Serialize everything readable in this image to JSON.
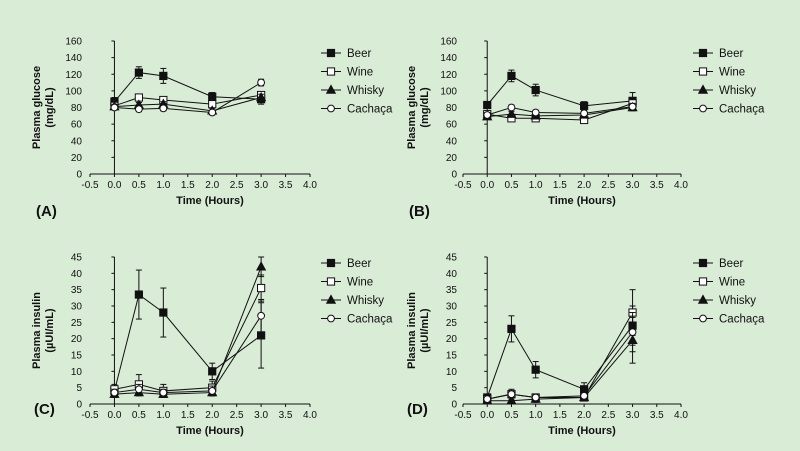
{
  "colors": {
    "background": "#d8ecd6",
    "ink": "#111111",
    "hollow_fill": "#ffffff"
  },
  "legend_labels": [
    "Beer",
    "Wine",
    "Whisky",
    "Cachaça"
  ],
  "series_markers": {
    "Beer": "filled-square",
    "Wine": "open-square",
    "Whisky": "filled-triangle",
    "Cachaça": "open-circle"
  },
  "chart_data": [
    {
      "type": "line",
      "panel_label": "(A)",
      "ylabel": "Plasma glucose (mg/dL)",
      "xlabel": "Time (Hours)",
      "x": [
        0,
        0.5,
        1,
        2,
        3
      ],
      "xlim": [
        -0.5,
        4.0
      ],
      "xticks": [
        "-0.5",
        "0.0",
        "0.5",
        "1.0",
        "1.5",
        "2.0",
        "2.5",
        "3.0",
        "3.5",
        "4.0"
      ],
      "ylim": [
        0,
        160
      ],
      "yticks": [
        "0",
        "20",
        "40",
        "60",
        "80",
        "100",
        "120",
        "140",
        "160"
      ],
      "legend_position": "right",
      "grid": false,
      "series": [
        {
          "name": "Beer",
          "values": [
            87,
            122,
            118,
            93,
            90
          ],
          "errors": [
            5,
            7,
            9,
            5,
            6
          ]
        },
        {
          "name": "Wine",
          "values": [
            82,
            92,
            89,
            84,
            95
          ],
          "errors": [
            3,
            4,
            4,
            3,
            4
          ]
        },
        {
          "name": "Whisky",
          "values": [
            81,
            83,
            84,
            76,
            92
          ],
          "errors": [
            3,
            3,
            3,
            3,
            4
          ]
        },
        {
          "name": "Cachaça",
          "values": [
            80,
            78,
            79,
            74,
            110
          ],
          "errors": [
            3,
            3,
            3,
            3,
            4
          ]
        }
      ]
    },
    {
      "type": "line",
      "panel_label": "(B)",
      "ylabel": "Plasma glucose (mg/dL)",
      "xlabel": "Time (Hours)",
      "x": [
        0,
        0.5,
        1,
        2,
        3
      ],
      "xlim": [
        -0.5,
        4.0
      ],
      "xticks": [
        "-0.5",
        "0.0",
        "0.5",
        "1.0",
        "1.5",
        "2.0",
        "2.5",
        "3.0",
        "3.5",
        "4.0"
      ],
      "ylim": [
        0,
        160
      ],
      "yticks": [
        "0",
        "20",
        "40",
        "60",
        "80",
        "100",
        "120",
        "140",
        "160"
      ],
      "legend_position": "right",
      "grid": false,
      "series": [
        {
          "name": "Beer",
          "values": [
            83,
            118,
            101,
            82,
            88
          ],
          "errors": [
            3,
            7,
            7,
            5,
            10
          ]
        },
        {
          "name": "Wine",
          "values": [
            72,
            67,
            67,
            65,
            85
          ],
          "errors": [
            3,
            3,
            3,
            3,
            4
          ]
        },
        {
          "name": "Whisky",
          "values": [
            69,
            72,
            70,
            71,
            80
          ],
          "errors": [
            3,
            3,
            3,
            3,
            4
          ]
        },
        {
          "name": "Cachaça",
          "values": [
            71,
            80,
            74,
            73,
            81
          ],
          "errors": [
            3,
            3,
            3,
            3,
            4
          ]
        }
      ]
    },
    {
      "type": "line",
      "panel_label": "(C)",
      "ylabel": "Plasma insulin (µUI/mL)",
      "xlabel": "Time (Hours)",
      "x": [
        0,
        0.5,
        1,
        2,
        3
      ],
      "xlim": [
        -0.5,
        4.0
      ],
      "xticks": [
        "-0.5",
        "0.0",
        "0.5",
        "1.0",
        "1.5",
        "2.0",
        "2.5",
        "3.0",
        "3.5",
        "4.0"
      ],
      "ylim": [
        0,
        45
      ],
      "yticks": [
        "0",
        "5",
        "10",
        "15",
        "20",
        "25",
        "30",
        "35",
        "40",
        "45"
      ],
      "legend_position": "right",
      "grid": false,
      "series": [
        {
          "name": "Beer",
          "values": [
            4,
            33.5,
            28,
            10,
            21
          ],
          "errors": [
            1.5,
            7.5,
            7.5,
            2.5,
            10
          ]
        },
        {
          "name": "Wine",
          "values": [
            4.5,
            6,
            4,
            5,
            35.5
          ],
          "errors": [
            1.5,
            3,
            2,
            2,
            4
          ]
        },
        {
          "name": "Whisky",
          "values": [
            3,
            3.5,
            3,
            3.5,
            42
          ],
          "errors": [
            1,
            1,
            1,
            1,
            3
          ]
        },
        {
          "name": "Cachaça",
          "values": [
            3.5,
            4.5,
            3.5,
            4,
            27
          ],
          "errors": [
            1,
            1.5,
            1,
            1.5,
            5
          ]
        }
      ]
    },
    {
      "type": "line",
      "panel_label": "(D)",
      "ylabel": "Plasma insulin (µUI/mL)",
      "xlabel": "Time (Hours)",
      "x": [
        0,
        0.5,
        1,
        2,
        3
      ],
      "xlim": [
        -0.5,
        4.0
      ],
      "xticks": [
        "-0.5",
        "0.0",
        "0.5",
        "1.0",
        "1.5",
        "2.0",
        "2.5",
        "3.0",
        "3.5",
        "4.0"
      ],
      "ylim": [
        0,
        45
      ],
      "yticks": [
        "0",
        "5",
        "10",
        "15",
        "20",
        "25",
        "30",
        "35",
        "40",
        "45"
      ],
      "legend_position": "right",
      "grid": false,
      "series": [
        {
          "name": "Beer",
          "values": [
            2,
            23,
            10.5,
            4.5,
            24
          ],
          "errors": [
            1,
            4,
            2.5,
            2,
            6
          ]
        },
        {
          "name": "Wine",
          "values": [
            1.5,
            3,
            2,
            2,
            28
          ],
          "errors": [
            1,
            1.5,
            1,
            1,
            7
          ]
        },
        {
          "name": "Whisky",
          "values": [
            1,
            1,
            1.5,
            2,
            19.5
          ],
          "errors": [
            1,
            1,
            1,
            1,
            7
          ]
        },
        {
          "name": "Cachaça",
          "values": [
            1.5,
            3,
            2,
            2.5,
            22
          ],
          "errors": [
            1,
            1,
            1,
            1,
            6
          ]
        }
      ]
    }
  ]
}
